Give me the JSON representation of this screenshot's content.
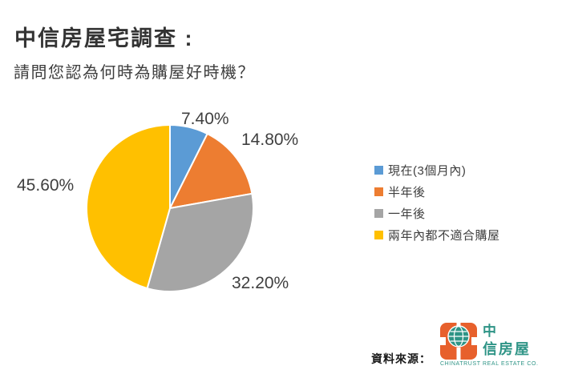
{
  "header": {
    "title": "中信房屋宅調查 :",
    "subtitle": "請問您認為何時為購屋好時機？"
  },
  "chart_data": {
    "type": "pie",
    "title": "請問您認為何時為購屋好時機？",
    "categories": [
      "現在(3個月內)",
      "半年後",
      "一年後",
      "兩年內都不適合購屋"
    ],
    "values": [
      7.4,
      14.8,
      32.2,
      45.6
    ],
    "value_labels": [
      "7.40%",
      "14.80%",
      "32.20%",
      "45.60%"
    ],
    "colors": [
      "#5B9BD5",
      "#ED7D31",
      "#A5A5A5",
      "#FFC000"
    ],
    "start_angle_deg": 0,
    "direction": "clockwise",
    "legend_position": "right",
    "label_color": "#3F3F3F",
    "slice_border_color": "#FFFFFF"
  },
  "source": {
    "label": "資料來源：",
    "logo": {
      "cjk_line1": "中",
      "cjk_line2": "信房屋",
      "latin": "CHINATRUST REAL ESTATE CO.",
      "orange": "#E7602C",
      "teal": "#2E9486"
    }
  }
}
